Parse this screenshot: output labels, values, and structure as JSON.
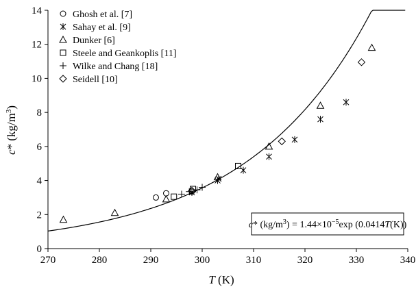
{
  "chart_data": {
    "type": "scatter",
    "xlabel_italic": "T",
    "xlabel_rest": " (K)",
    "ylabel_italic": "c",
    "ylabel_rest": "* (kg/m",
    "ylabel_sup": "3",
    "ylabel_close": ")",
    "xlim": [
      270,
      340
    ],
    "ylim": [
      0,
      14
    ],
    "x_ticks": [
      "270",
      "280",
      "290",
      "300",
      "310",
      "320",
      "330",
      "340"
    ],
    "y_ticks": [
      "0",
      "2",
      "4",
      "6",
      "8",
      "10",
      "12",
      "14"
    ],
    "grid": false,
    "legend_position": "top-left",
    "series": [
      {
        "name": "Ghosh et al. [7]",
        "marker": "circle",
        "points": [
          [
            291,
            3.0
          ],
          [
            293,
            3.25
          ],
          [
            298,
            3.35
          ]
        ]
      },
      {
        "name": "Sahay et al. [9]",
        "marker": "asterisk",
        "points": [
          [
            298,
            3.3
          ],
          [
            303,
            4.0
          ],
          [
            303.2,
            4.1
          ],
          [
            308,
            4.6
          ],
          [
            313,
            5.4
          ],
          [
            318,
            6.4
          ],
          [
            323,
            7.6
          ],
          [
            328,
            8.6
          ]
        ]
      },
      {
        "name": "Dunker [6]",
        "marker": "triangle",
        "points": [
          [
            273,
            1.7
          ],
          [
            283,
            2.1
          ],
          [
            293,
            2.9
          ],
          [
            303,
            4.2
          ],
          [
            313,
            6.0
          ],
          [
            323,
            8.4
          ],
          [
            333,
            11.8
          ]
        ]
      },
      {
        "name": "Steele and Geankoplis [11]",
        "marker": "square",
        "points": [
          [
            294.5,
            3.05
          ],
          [
            298.2,
            3.5
          ],
          [
            307,
            4.85
          ]
        ]
      },
      {
        "name": "Wilke and Chang [18]",
        "marker": "plus",
        "points": [
          [
            296,
            3.2
          ],
          [
            297.5,
            3.35
          ],
          [
            299,
            3.45
          ],
          [
            300,
            3.6
          ]
        ]
      },
      {
        "name": "Seidell [10]",
        "marker": "diamond",
        "points": [
          [
            298,
            3.4
          ],
          [
            315.5,
            6.3
          ],
          [
            331,
            10.95
          ]
        ]
      }
    ],
    "fit_curve": {
      "a": 1.44e-05,
      "b": 0.0414,
      "x_range": [
        270,
        339.5
      ]
    },
    "equation": {
      "italic1": "c",
      "part1": "* (kg/m",
      "sup1": "3",
      "part2": ") = 1.44×10",
      "sup2": "−5",
      "part3": "exp (0.0414",
      "italic2": "T",
      "part4": "(K))"
    }
  }
}
